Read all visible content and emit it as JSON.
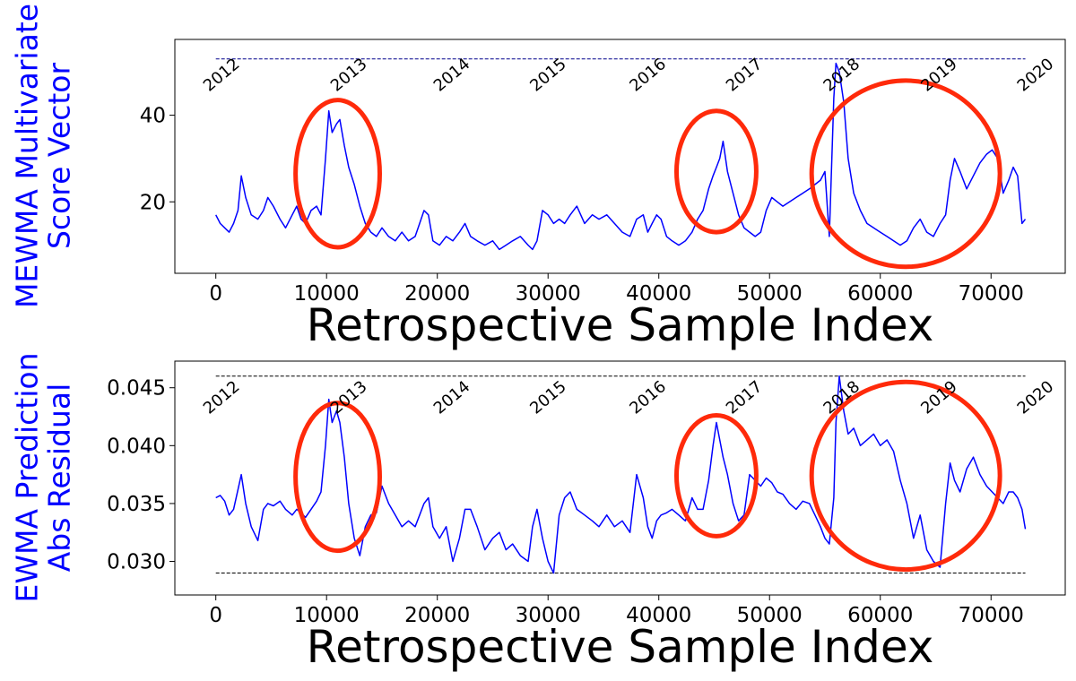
{
  "chart_data": [
    {
      "type": "line",
      "ylabel": [
        "MEWMA Multivariate",
        "Score Vector"
      ],
      "xlabel": "Retrospective Sample Index",
      "xlim": [
        -3700,
        76700
      ],
      "ylim": [
        3.5,
        57.5
      ],
      "xticks": [
        0,
        10000,
        20000,
        30000,
        40000,
        50000,
        60000,
        70000
      ],
      "yticks": [
        20,
        40
      ],
      "ytick_labels": [
        "20",
        "40"
      ],
      "line_color": "#0000ff",
      "threshold": {
        "values": [
          53.0
        ],
        "color": "#00008b",
        "style": "dashed"
      },
      "year_markers": [
        {
          "label": "2012",
          "x": 0
        },
        {
          "label": "2013",
          "x": 11500
        },
        {
          "label": "2014",
          "x": 20800
        },
        {
          "label": "2015",
          "x": 29500
        },
        {
          "label": "2016",
          "x": 38500
        },
        {
          "label": "2017",
          "x": 47200
        },
        {
          "label": "2018",
          "x": 56000
        },
        {
          "label": "2019",
          "x": 64800
        },
        {
          "label": "2020",
          "x": 73500
        }
      ],
      "anomaly_ellipses": [
        {
          "cx": 11000,
          "cy": 26.5,
          "rx": 3800,
          "ry": 17.0
        },
        {
          "cx": 45200,
          "cy": 27.0,
          "rx": 3600,
          "ry": 14.0
        },
        {
          "cx": 62300,
          "cy": 26.5,
          "rx": 8500,
          "ry": 21.5
        }
      ],
      "series": [
        {
          "x": [
            0,
            400,
            800,
            1200,
            1600,
            2000,
            2300,
            2700,
            3200,
            3800,
            4300,
            4700,
            5200,
            5800,
            6300,
            6900,
            7300,
            7700,
            8100,
            8600,
            9100,
            9500,
            9900,
            10200,
            10500,
            10900,
            11200,
            11600,
            12000,
            12500,
            13000,
            13500,
            14000,
            14500,
            15000,
            15600,
            16200,
            16800,
            17400,
            18000,
            18400,
            18800,
            19200,
            19600,
            20200,
            20800,
            21400,
            22000,
            22500,
            23000,
            23600,
            24300,
            25000,
            25600,
            26200,
            26800,
            27500,
            28200,
            28600,
            29000,
            29500,
            30000,
            30500,
            31000,
            31500,
            32000,
            32600,
            33300,
            34000,
            34600,
            35300,
            36000,
            36700,
            37400,
            38000,
            38600,
            39000,
            39400,
            39800,
            40200,
            40700,
            41200,
            41800,
            42400,
            43000,
            43500,
            44000,
            44500,
            44900,
            45200,
            45500,
            45800,
            46200,
            46700,
            47200,
            47700,
            48200,
            48700,
            49200,
            49700,
            50200,
            50700,
            51200,
            51800,
            52400,
            53000,
            53600,
            54100,
            54600,
            55000,
            55400,
            55800,
            56000,
            56300,
            56700,
            57100,
            57600,
            58200,
            58800,
            59400,
            60000,
            60600,
            61200,
            61800,
            62400,
            63000,
            63600,
            64200,
            64800,
            65400,
            65900,
            66300,
            66700,
            67200,
            67800,
            68400,
            69000,
            69600,
            70100,
            70600,
            71100,
            71600,
            72000,
            72400,
            72800,
            73100
          ],
          "y": [
            17,
            15,
            14,
            13,
            15,
            18,
            26,
            21,
            17,
            16,
            18,
            21,
            19,
            16,
            14,
            17,
            19,
            16,
            15,
            18,
            19,
            17,
            30,
            41,
            36,
            38,
            39,
            33,
            28,
            24,
            19,
            15,
            13,
            12,
            14,
            12,
            11,
            13,
            11,
            12,
            15,
            18,
            17,
            11,
            10,
            12,
            11,
            13,
            15,
            12,
            11,
            10,
            11,
            9,
            10,
            11,
            12,
            10,
            9,
            11,
            18,
            17,
            15,
            16,
            15,
            17,
            19,
            15,
            17,
            16,
            17,
            15,
            13,
            12,
            16,
            17,
            13,
            15,
            17,
            16,
            12,
            11,
            10,
            11,
            13,
            16,
            18,
            23,
            26,
            28,
            30,
            34,
            27,
            22,
            17,
            14,
            13,
            12,
            13,
            18,
            21,
            20,
            19,
            20,
            21,
            22,
            23,
            24,
            25,
            27,
            12,
            44,
            52,
            50,
            43,
            30,
            22,
            18,
            15,
            14,
            13,
            12,
            11,
            10,
            11,
            14,
            16,
            13,
            12,
            15,
            17,
            25,
            30,
            27,
            23,
            26,
            29,
            31,
            32,
            30,
            22,
            25,
            28,
            26,
            15,
            16
          ]
        }
      ]
    },
    {
      "type": "line",
      "ylabel": [
        "EWMA Prediction",
        "Abs Residual"
      ],
      "xlabel": "Retrospective Sample Index",
      "xlim": [
        -3700,
        76700
      ],
      "ylim": [
        0.0271,
        0.0473
      ],
      "xticks": [
        0,
        10000,
        20000,
        30000,
        40000,
        50000,
        60000,
        70000
      ],
      "yticks": [
        0.03,
        0.035,
        0.04,
        0.045
      ],
      "ytick_labels": [
        "0.030",
        "0.035",
        "0.040",
        "0.045"
      ],
      "line_color": "#0000ff",
      "threshold": {
        "values": [
          0.046,
          0.029
        ],
        "color": "#000000",
        "style": "dashed"
      },
      "year_markers": [
        {
          "label": "2012",
          "x": 0
        },
        {
          "label": "2013",
          "x": 11500
        },
        {
          "label": "2014",
          "x": 20800
        },
        {
          "label": "2015",
          "x": 29500
        },
        {
          "label": "2016",
          "x": 38500
        },
        {
          "label": "2017",
          "x": 47200
        },
        {
          "label": "2018",
          "x": 56000
        },
        {
          "label": "2019",
          "x": 64800
        },
        {
          "label": "2020",
          "x": 73500
        }
      ],
      "anomaly_ellipses": [
        {
          "cx": 11000,
          "cy": 0.0373,
          "rx": 3800,
          "ry": 0.00638
        },
        {
          "cx": 45200,
          "cy": 0.0374,
          "rx": 3600,
          "ry": 0.00522
        },
        {
          "cx": 62300,
          "cy": 0.0374,
          "rx": 8500,
          "ry": 0.0081
        }
      ],
      "series": [
        {
          "x": [
            0,
            400,
            800,
            1200,
            1600,
            2000,
            2300,
            2700,
            3200,
            3800,
            4300,
            4700,
            5200,
            5800,
            6300,
            6900,
            7300,
            7700,
            8100,
            8600,
            9100,
            9500,
            9900,
            10200,
            10500,
            10900,
            11200,
            11600,
            12000,
            12500,
            13000,
            13500,
            14000,
            14500,
            15000,
            15600,
            16200,
            16800,
            17400,
            18000,
            18400,
            18800,
            19200,
            19600,
            20200,
            20800,
            21400,
            22000,
            22500,
            23000,
            23600,
            24300,
            25000,
            25600,
            26200,
            26800,
            27500,
            28200,
            28600,
            29000,
            29500,
            30000,
            30500,
            31000,
            31500,
            32000,
            32600,
            33300,
            34000,
            34600,
            35300,
            36000,
            36700,
            37400,
            38000,
            38600,
            39000,
            39400,
            39800,
            40200,
            40700,
            41200,
            41800,
            42400,
            43000,
            43500,
            44000,
            44500,
            44900,
            45200,
            45500,
            45800,
            46200,
            46700,
            47200,
            47700,
            48200,
            48700,
            49200,
            49700,
            50200,
            50700,
            51200,
            51800,
            52400,
            53000,
            53600,
            54100,
            54600,
            55000,
            55400,
            55800,
            56000,
            56300,
            56700,
            57100,
            57600,
            58200,
            58800,
            59400,
            60000,
            60600,
            61200,
            61800,
            62400,
            63000,
            63600,
            64200,
            64800,
            65400,
            65900,
            66300,
            66700,
            67200,
            67800,
            68400,
            69000,
            69600,
            70100,
            70600,
            71100,
            71600,
            72000,
            72400,
            72800,
            73100
          ],
          "y": [
            0.0355,
            0.0357,
            0.0352,
            0.034,
            0.0345,
            0.0362,
            0.0375,
            0.035,
            0.033,
            0.0318,
            0.0345,
            0.035,
            0.0348,
            0.0352,
            0.0345,
            0.034,
            0.0345,
            0.0342,
            0.0338,
            0.0345,
            0.0352,
            0.036,
            0.04,
            0.044,
            0.042,
            0.043,
            0.042,
            0.039,
            0.035,
            0.032,
            0.0305,
            0.033,
            0.034,
            0.0342,
            0.0365,
            0.035,
            0.034,
            0.033,
            0.0335,
            0.033,
            0.034,
            0.035,
            0.0355,
            0.033,
            0.032,
            0.033,
            0.03,
            0.032,
            0.0345,
            0.0345,
            0.033,
            0.031,
            0.032,
            0.0325,
            0.031,
            0.0315,
            0.0305,
            0.03,
            0.033,
            0.0345,
            0.032,
            0.03,
            0.029,
            0.034,
            0.0355,
            0.036,
            0.0345,
            0.034,
            0.0335,
            0.033,
            0.034,
            0.033,
            0.0335,
            0.0325,
            0.0375,
            0.0355,
            0.033,
            0.032,
            0.0335,
            0.034,
            0.0342,
            0.0345,
            0.034,
            0.0335,
            0.0355,
            0.0345,
            0.0345,
            0.037,
            0.04,
            0.042,
            0.0405,
            0.039,
            0.0375,
            0.035,
            0.0335,
            0.034,
            0.0375,
            0.037,
            0.0365,
            0.0372,
            0.0368,
            0.036,
            0.0358,
            0.035,
            0.0345,
            0.0352,
            0.035,
            0.034,
            0.033,
            0.032,
            0.0315,
            0.0355,
            0.042,
            0.046,
            0.043,
            0.041,
            0.0415,
            0.04,
            0.0405,
            0.041,
            0.04,
            0.0405,
            0.0395,
            0.037,
            0.035,
            0.032,
            0.034,
            0.031,
            0.03,
            0.0295,
            0.035,
            0.0385,
            0.037,
            0.036,
            0.038,
            0.039,
            0.0375,
            0.0365,
            0.036,
            0.0355,
            0.035,
            0.036,
            0.036,
            0.0355,
            0.0345,
            0.0328
          ]
        }
      ]
    }
  ]
}
